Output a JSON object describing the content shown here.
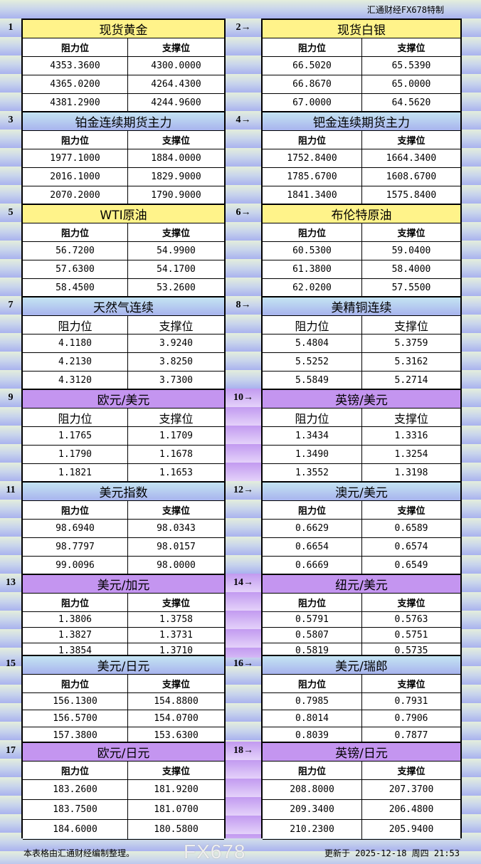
{
  "brand": "汇通财经FX678特制",
  "col_res": "阻力位",
  "col_sup": "支撑位",
  "sections": [
    {
      "num": "1",
      "title": "现货黄金",
      "rows": [
        [
          "4353.3600",
          "4300.0000"
        ],
        [
          "4365.0200",
          "4264.4300"
        ],
        [
          "4381.2900",
          "4244.9600"
        ]
      ]
    },
    {
      "num": "2→",
      "title": "现货白银",
      "rows": [
        [
          "66.5020",
          "65.5390"
        ],
        [
          "66.8670",
          "65.0000"
        ],
        [
          "67.0000",
          "64.5620"
        ]
      ]
    },
    {
      "num": "3",
      "title": "铂金连续期货主力",
      "rows": [
        [
          "1977.1000",
          "1884.0000"
        ],
        [
          "2016.1000",
          "1829.9000"
        ],
        [
          "2070.2000",
          "1790.9000"
        ]
      ]
    },
    {
      "num": "4→",
      "title": "钯金连续期货主力",
      "rows": [
        [
          "1752.8400",
          "1664.3400"
        ],
        [
          "1785.6700",
          "1608.6700"
        ],
        [
          "1841.3400",
          "1575.8400"
        ]
      ]
    },
    {
      "num": "5",
      "title": "WTI原油",
      "rows": [
        [
          "56.7200",
          "54.9900"
        ],
        [
          "57.6300",
          "54.1700"
        ],
        [
          "58.4500",
          "53.2600"
        ]
      ]
    },
    {
      "num": "6→",
      "title": "布伦特原油",
      "rows": [
        [
          "60.5300",
          "59.0400"
        ],
        [
          "61.3800",
          "58.4000"
        ],
        [
          "62.0200",
          "57.5500"
        ]
      ]
    },
    {
      "num": "7",
      "title": "天然气连续",
      "rows": [
        [
          "4.1180",
          "3.9240"
        ],
        [
          "4.2130",
          "3.8250"
        ],
        [
          "4.3120",
          "3.7300"
        ]
      ]
    },
    {
      "num": "8→",
      "title": "美精铜连续",
      "rows": [
        [
          "5.4804",
          "5.3759"
        ],
        [
          "5.5252",
          "5.3162"
        ],
        [
          "5.5849",
          "5.2714"
        ]
      ]
    },
    {
      "num": "9",
      "title": "欧元/美元",
      "rows": [
        [
          "1.1765",
          "1.1709"
        ],
        [
          "1.1790",
          "1.1678"
        ],
        [
          "1.1821",
          "1.1653"
        ]
      ]
    },
    {
      "num": "10→",
      "title": "英镑/美元",
      "rows": [
        [
          "1.3434",
          "1.3316"
        ],
        [
          "1.3490",
          "1.3254"
        ],
        [
          "1.3552",
          "1.3198"
        ]
      ]
    },
    {
      "num": "11",
      "title": "美元指数",
      "rows": [
        [
          "98.6940",
          "98.0343"
        ],
        [
          "98.7797",
          "98.0157"
        ],
        [
          "99.0096",
          "98.0000"
        ]
      ]
    },
    {
      "num": "12→",
      "title": "澳元/美元",
      "rows": [
        [
          "0.6629",
          "0.6589"
        ],
        [
          "0.6654",
          "0.6574"
        ],
        [
          "0.6669",
          "0.6549"
        ]
      ]
    },
    {
      "num": "13",
      "title": "美元/加元",
      "rows": [
        [
          "1.3806",
          "1.3758"
        ],
        [
          "1.3827",
          "1.3731"
        ],
        [
          "1.3854",
          "1.3710"
        ]
      ]
    },
    {
      "num": "14→",
      "title": "纽元/美元",
      "rows": [
        [
          "0.5791",
          "0.5763"
        ],
        [
          "0.5807",
          "0.5751"
        ],
        [
          "0.5819",
          "0.5735"
        ]
      ]
    },
    {
      "num": "15",
      "title": "美元/日元",
      "rows": [
        [
          "156.1300",
          "154.8800"
        ],
        [
          "156.5700",
          "154.0700"
        ],
        [
          "157.3800",
          "153.6300"
        ]
      ]
    },
    {
      "num": "16→",
      "title": "美元/瑞郎",
      "rows": [
        [
          "0.7985",
          "0.7931"
        ],
        [
          "0.8014",
          "0.7906"
        ],
        [
          "0.8039",
          "0.7877"
        ]
      ]
    },
    {
      "num": "17",
      "title": "欧元/日元",
      "rows": [
        [
          "183.2600",
          "181.9200"
        ],
        [
          "183.7500",
          "181.0700"
        ],
        [
          "184.6000",
          "180.5800"
        ]
      ]
    },
    {
      "num": "18→",
      "title": "英镑/日元",
      "rows": [
        [
          "208.8000",
          "207.3700"
        ],
        [
          "209.3400",
          "206.4800"
        ],
        [
          "210.2300",
          "205.9400"
        ]
      ]
    }
  ],
  "footer": {
    "note": "本表格由汇通财经编制整理。",
    "updated": "更新于 2025-12-18 周四 21:53"
  },
  "watermark": "FX678",
  "colors": {
    "yellow": "#fff38a",
    "blue": "#b8d0f0",
    "purple": "#c495f0"
  }
}
